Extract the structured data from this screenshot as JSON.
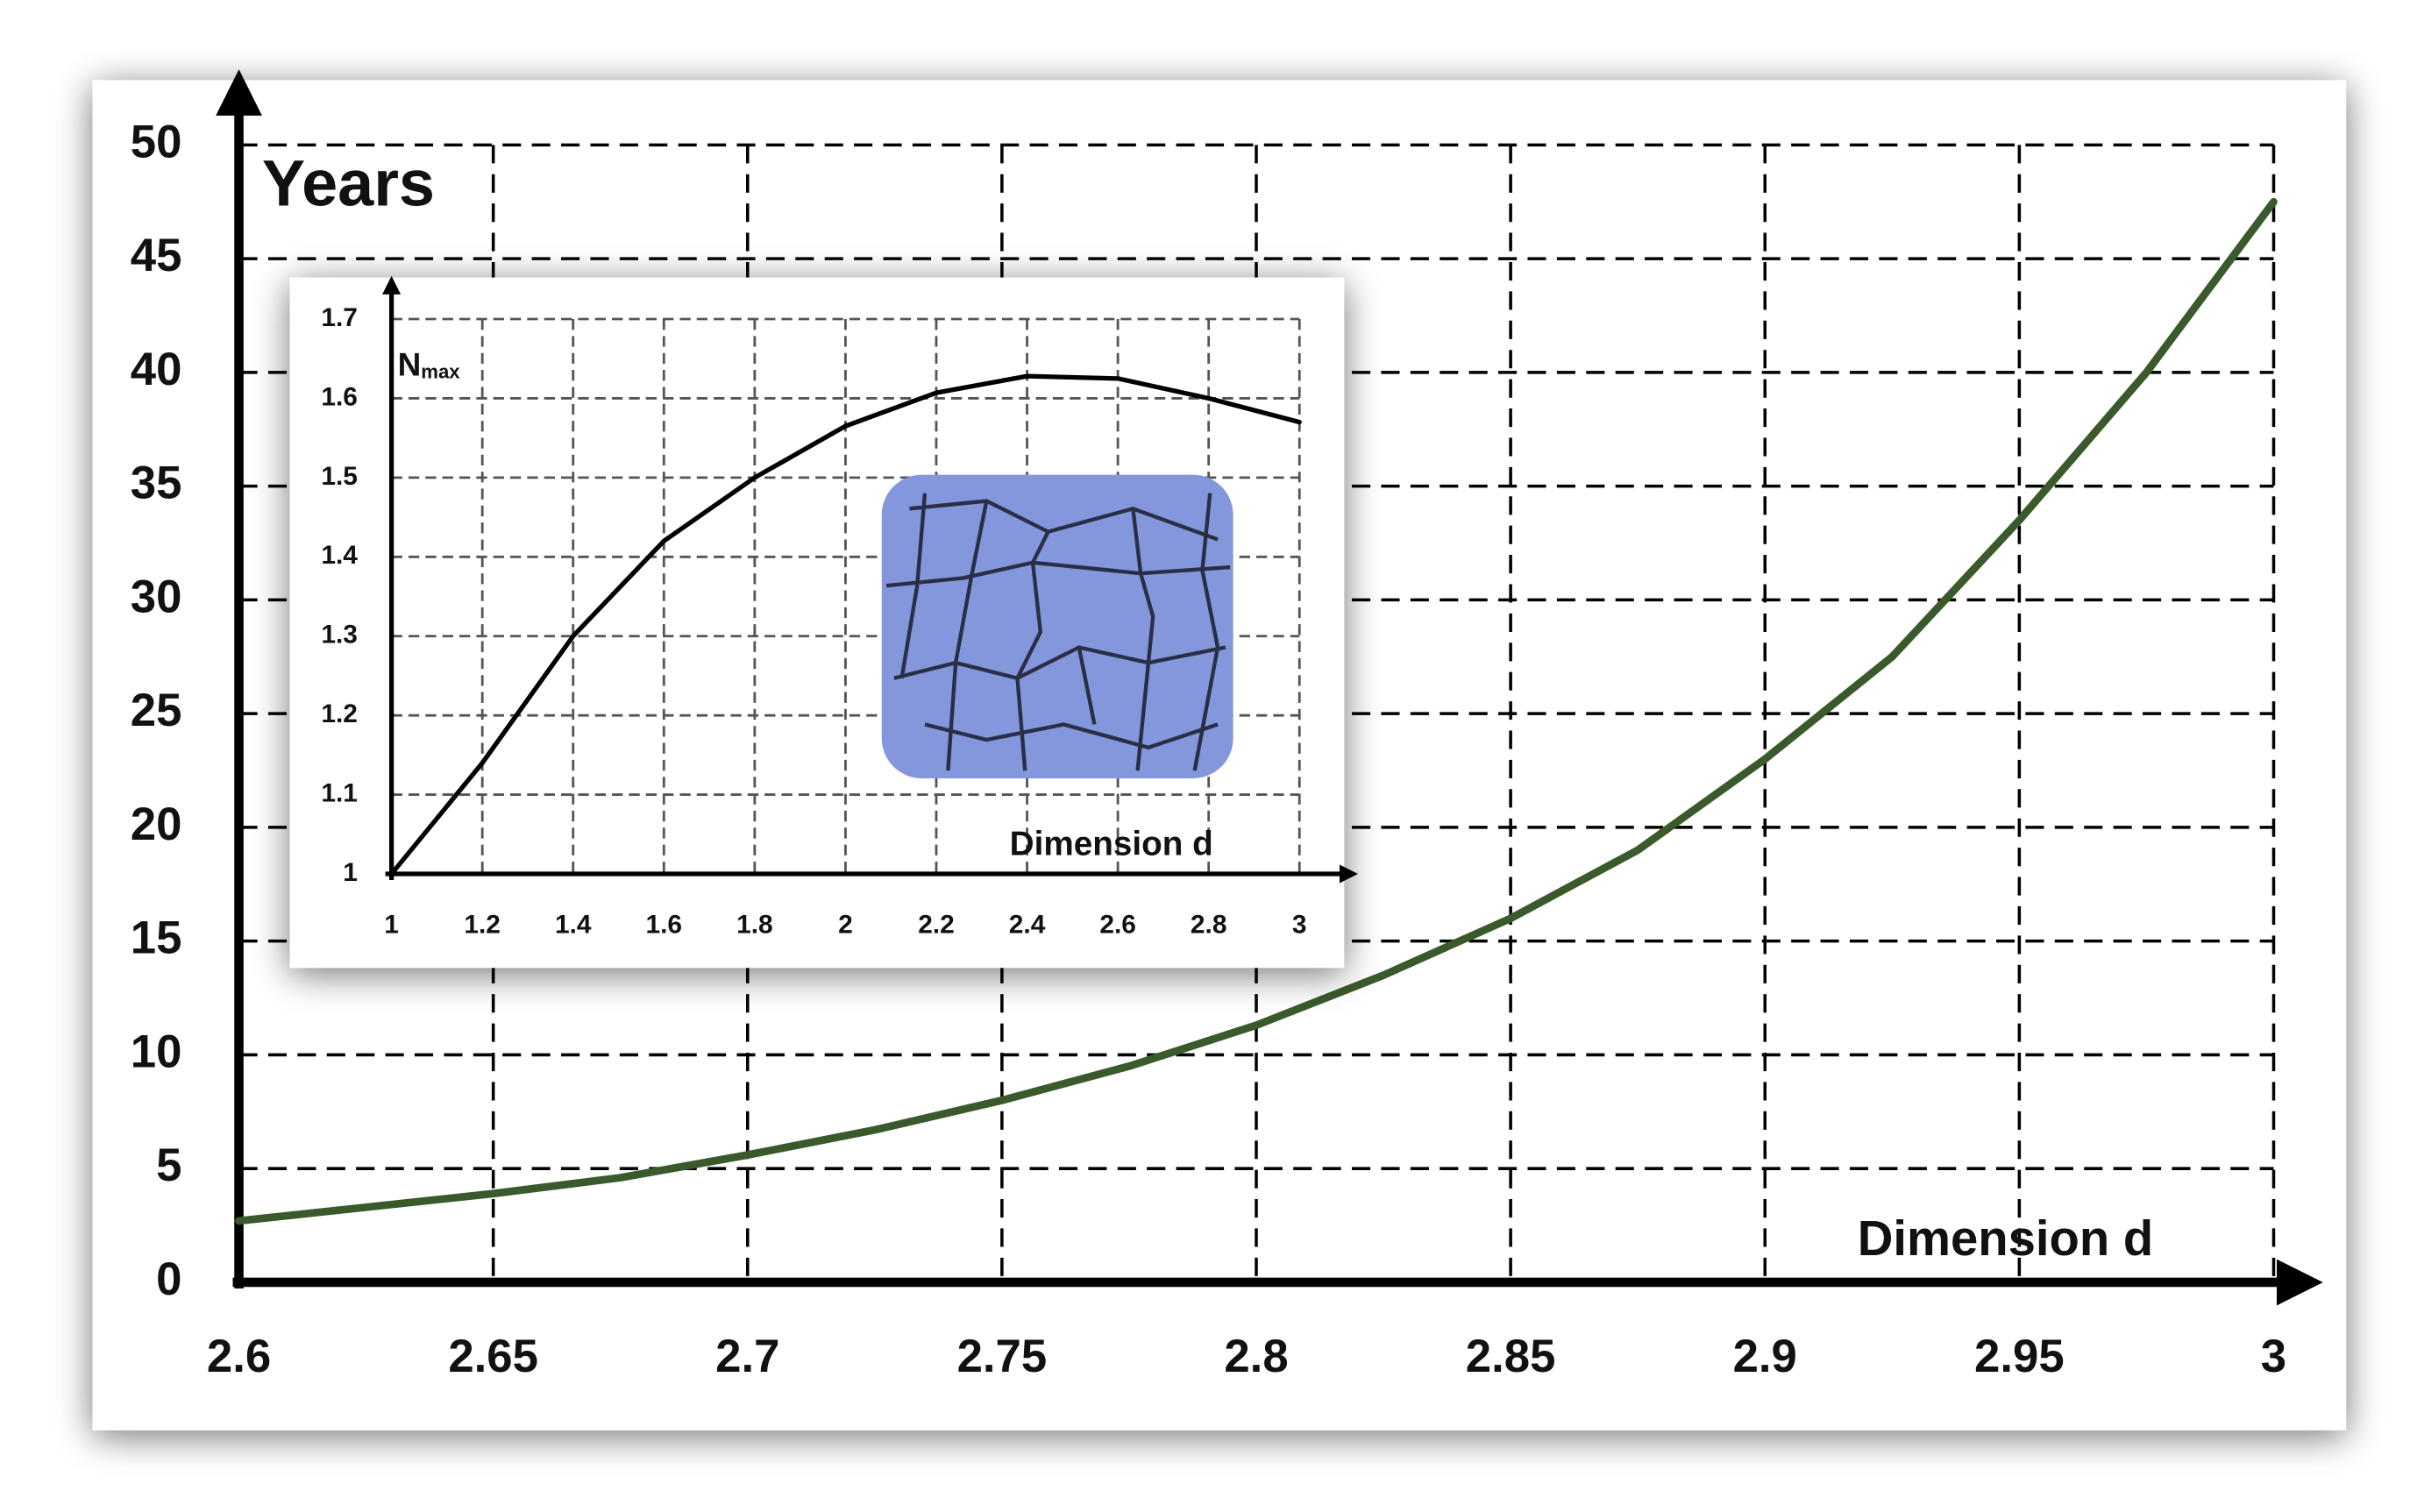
{
  "chart_data": [
    {
      "type": "line",
      "x_label": "Dimension d",
      "y_label": "Years",
      "x": [
        2.6,
        2.625,
        2.65,
        2.675,
        2.7,
        2.725,
        2.75,
        2.775,
        2.8,
        2.825,
        2.85,
        2.875,
        2.9,
        2.925,
        2.95,
        2.975,
        3
      ],
      "series": [
        {
          "color": "#3b5a2b",
          "values": [
            2.7,
            3.3,
            3.9,
            4.6,
            5.6,
            6.7,
            8,
            9.5,
            11.3,
            13.5,
            16,
            19,
            23,
            27.5,
            33.5,
            40,
            47.5
          ]
        }
      ],
      "xlim": [
        2.6,
        3
      ],
      "xticks": [
        2.6,
        2.65,
        2.7,
        2.75,
        2.8,
        2.85,
        2.9,
        2.95,
        3
      ],
      "ylim": [
        0,
        50
      ],
      "yticks": [
        0,
        5,
        10,
        15,
        20,
        25,
        30,
        35,
        40,
        45,
        50
      ],
      "grid": true
    },
    {
      "type": "line",
      "x_label": "Dimension d",
      "y_label": "N",
      "y_label_subscript": "max",
      "x": [
        1,
        1.2,
        1.4,
        1.6,
        1.8,
        2,
        2.2,
        2.4,
        2.6,
        2.8,
        3
      ],
      "series": [
        {
          "color": "#000000",
          "values": [
            1,
            1.14,
            1.3,
            1.42,
            1.5,
            1.565,
            1.607,
            1.628,
            1.625,
            1.6,
            1.57
          ]
        }
      ],
      "xlim": [
        1,
        3
      ],
      "xticks": [
        1,
        1.2,
        1.4,
        1.6,
        1.8,
        2,
        2.2,
        2.4,
        2.6,
        2.8,
        3
      ],
      "ylim": [
        1,
        1.7
      ],
      "yticks": [
        1,
        1.1,
        1.2,
        1.3,
        1.4,
        1.5,
        1.6,
        1.7
      ],
      "grid": true
    }
  ]
}
